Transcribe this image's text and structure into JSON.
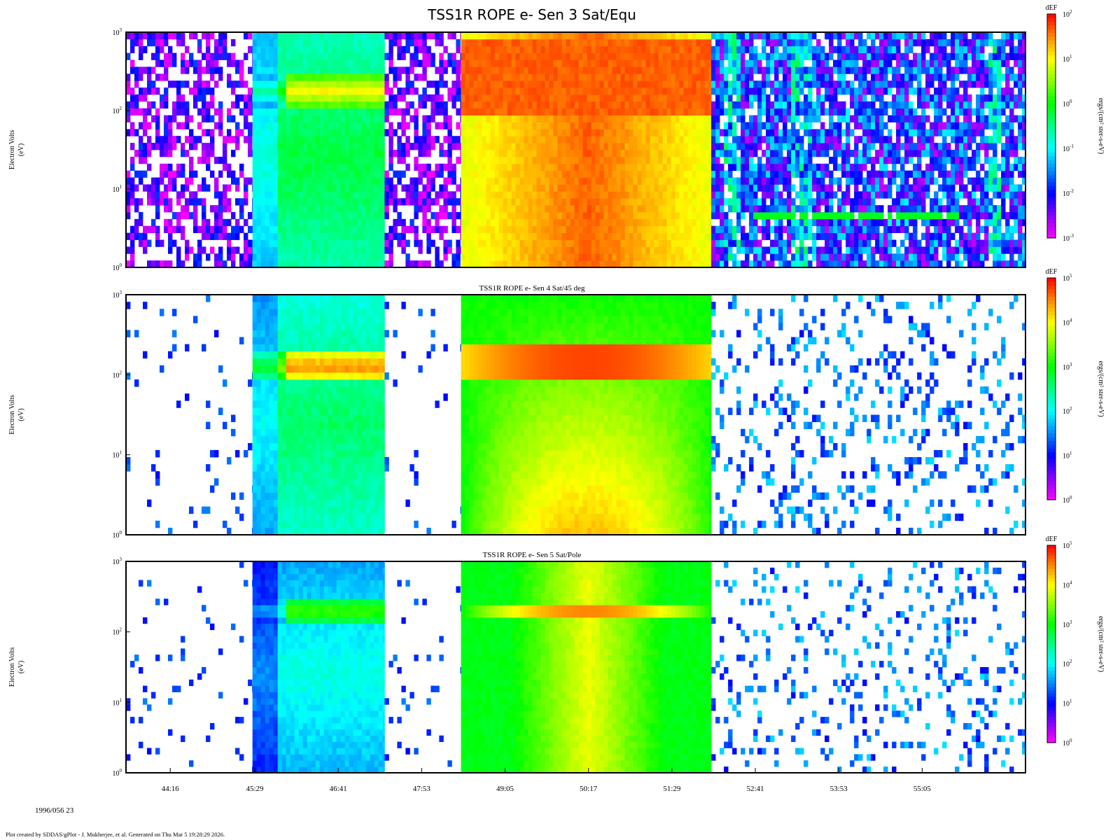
{
  "chart_data": {
    "type": "heatmap",
    "main_title": "TSS1R ROPE e- Sen 3 Sat/Equ",
    "date_label": "1996/056 23",
    "footer": "Plot created by SDDAS/gPlot - J. Mukherjee, et al.  Generated on Thu Mar 5 19:28:29 2026.",
    "x_axis": {
      "tick_labels": [
        "44:16",
        "45:29",
        "46:41",
        "47:53",
        "49:05",
        "50:17",
        "51:29",
        "52:41",
        "53:53",
        "55:05"
      ],
      "tick_minutes": [
        44.2667,
        45.4833,
        46.6833,
        47.8833,
        49.0833,
        50.2833,
        51.4833,
        52.6833,
        53.8833,
        55.0833
      ],
      "range_minutes": [
        43.63,
        56.57
      ]
    },
    "colormap": [
      "#ff00ff",
      "#8800ff",
      "#0000ff",
      "#0088ff",
      "#00ffff",
      "#00ff88",
      "#00ff00",
      "#88ff00",
      "#ffff00",
      "#ff8800",
      "#ff0000"
    ],
    "panels": [
      {
        "title": "",
        "ylabel": [
          "Electron Volts",
          "(eV)"
        ],
        "yticks": [
          "10",
          "10",
          "10",
          "10"
        ],
        "ytick_exp": [
          "0",
          "1",
          "2",
          "3"
        ],
        "ylim_log10": [
          0,
          3
        ],
        "colorbar": {
          "title": "dEF",
          "label": "ergs/(cm² ster-s-eV)",
          "tick_base": [
            "10",
            "10",
            "10",
            "10",
            "10",
            "10"
          ],
          "tick_exp": [
            "-3",
            "-2",
            "-1",
            "0",
            "1",
            "2"
          ],
          "range_log10": [
            -3,
            2
          ]
        },
        "regions": [
          {
            "t0": 43.63,
            "t1": 45.45,
            "mode": "sparse",
            "lo": 0.0,
            "hi": 0.25,
            "density": 0.55
          },
          {
            "t0": 45.45,
            "t1": 47.35,
            "mode": "band_a",
            "base": 0.58,
            "peak": 0.82,
            "peak_e": 2.25
          },
          {
            "t0": 47.35,
            "t1": 48.45,
            "mode": "sparse",
            "lo": 0.0,
            "hi": 0.25,
            "density": 0.6
          },
          {
            "t0": 48.45,
            "t1": 52.05,
            "mode": "hot",
            "base": 0.95
          },
          {
            "t0": 52.05,
            "t1": 56.57,
            "mode": "noisy_blue",
            "lo": 0.05,
            "hi": 0.4,
            "density": 0.85
          }
        ]
      },
      {
        "title": "TSS1R ROPE e- Sen 4 Sat/45 deg",
        "ylabel": [
          "Electron Volts",
          "(eV)"
        ],
        "yticks": [
          "10",
          "10",
          "10",
          "10"
        ],
        "ytick_exp": [
          "0",
          "1",
          "2",
          "3"
        ],
        "ylim_log10": [
          0,
          3
        ],
        "colorbar": {
          "title": "dEF",
          "label": "ergs/(cm² ster-s-eV)",
          "tick_base": [
            "10",
            "10",
            "10",
            "10",
            "10",
            "10"
          ],
          "tick_exp": [
            "0",
            "1",
            "2",
            "3",
            "4",
            "5"
          ],
          "range_log10": [
            0,
            5
          ]
        },
        "regions": [
          {
            "t0": 43.63,
            "t1": 45.45,
            "mode": "sparse",
            "lo": 0.2,
            "hi": 0.3,
            "density": 0.06
          },
          {
            "t0": 45.45,
            "t1": 47.35,
            "mode": "band_b",
            "base": 0.55,
            "peak": 0.92,
            "peak_e": 2.1
          },
          {
            "t0": 47.35,
            "t1": 48.45,
            "mode": "sparse",
            "lo": 0.2,
            "hi": 0.3,
            "density": 0.05
          },
          {
            "t0": 48.45,
            "t1": 52.05,
            "mode": "dome",
            "base": 0.62,
            "peak": 0.95
          },
          {
            "t0": 52.05,
            "t1": 56.57,
            "mode": "sparse",
            "lo": 0.2,
            "hi": 0.38,
            "density": 0.18
          }
        ]
      },
      {
        "title": "TSS1R ROPE e- Sen 5 Sat/Pole",
        "ylabel": [
          "Electron Volts",
          "(eV)"
        ],
        "yticks": [
          "10",
          "10",
          "10",
          "10"
        ],
        "ytick_exp": [
          "0",
          "1",
          "2",
          "3"
        ],
        "ylim_log10": [
          0,
          3
        ],
        "colorbar": {
          "title": "dEF",
          "label": "ergs/(cm² ster-s-eV)",
          "tick_base": [
            "10",
            "10",
            "10",
            "10",
            "10",
            "10"
          ],
          "tick_exp": [
            "0",
            "1",
            "2",
            "3",
            "4",
            "5"
          ],
          "range_log10": [
            0,
            5
          ]
        },
        "regions": [
          {
            "t0": 43.63,
            "t1": 45.45,
            "mode": "sparse",
            "lo": 0.2,
            "hi": 0.3,
            "density": 0.06
          },
          {
            "t0": 45.45,
            "t1": 47.35,
            "mode": "band_c",
            "base": 0.45,
            "peak": 0.68,
            "peak_e": 2.3
          },
          {
            "t0": 47.35,
            "t1": 48.45,
            "mode": "sparse",
            "lo": 0.2,
            "hi": 0.3,
            "density": 0.05
          },
          {
            "t0": 48.45,
            "t1": 52.05,
            "mode": "cone",
            "base": 0.6,
            "peak": 0.9
          },
          {
            "t0": 52.05,
            "t1": 56.57,
            "mode": "sparse",
            "lo": 0.2,
            "hi": 0.38,
            "density": 0.14
          }
        ]
      }
    ]
  }
}
